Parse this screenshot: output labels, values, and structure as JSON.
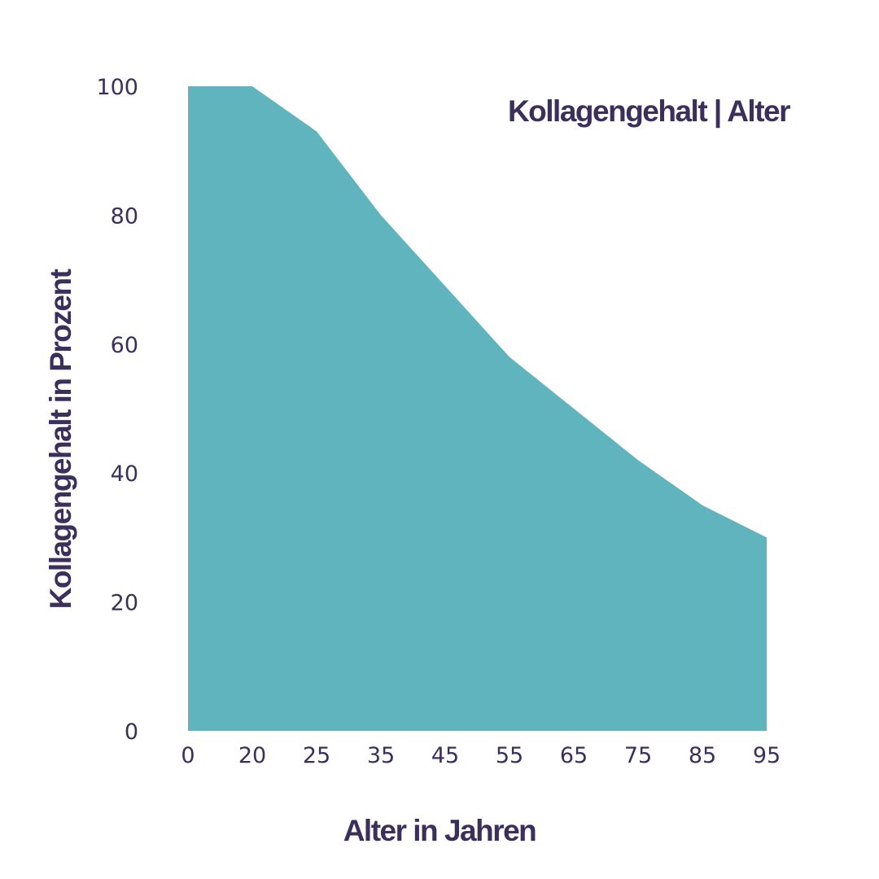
{
  "chart_data": {
    "type": "area",
    "title": "Kollagengehalt | Alter",
    "xlabel": "Alter in Jahren",
    "ylabel": "Kollagengehalt in Prozent",
    "categories": [
      "0",
      "20",
      "25",
      "35",
      "45",
      "55",
      "65",
      "75",
      "85",
      "95"
    ],
    "series": [
      {
        "values": [
          100,
          100,
          93,
          80,
          69,
          58,
          50,
          42,
          35,
          30
        ]
      }
    ],
    "yticks": [
      0,
      20,
      40,
      60,
      80,
      100
    ],
    "ylim": [
      0,
      100
    ],
    "grid": false,
    "legend": "none",
    "colors": {
      "fill": "#60b4bd",
      "text": "#3b2f5c"
    }
  }
}
